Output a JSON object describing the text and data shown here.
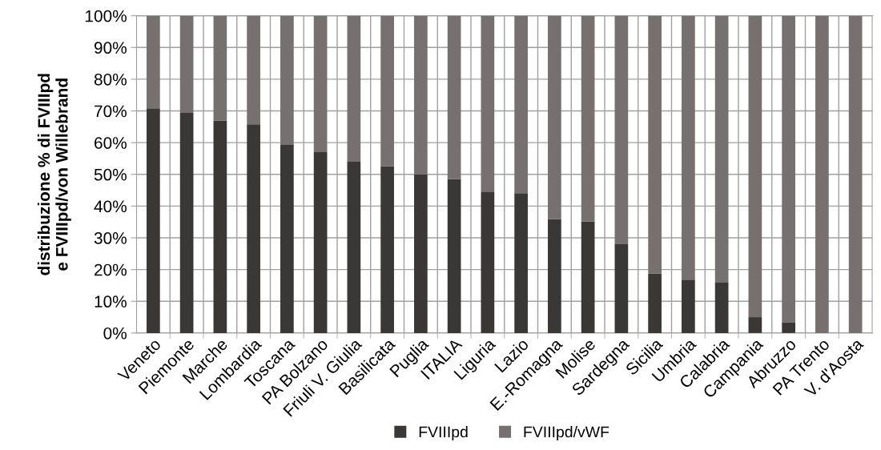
{
  "chart_data": {
    "type": "bar",
    "stacked": true,
    "ylabel": "distribuzione % di FVIIIpd\ne FVIIIpd/von Willebrand",
    "categories": [
      "Veneto",
      "Piemonte",
      "Marche",
      "Lombardia",
      "Toscana",
      "PA Bolzano",
      "Friuli V. Giulia",
      "Basilicata",
      "Puglia",
      "ITALIA",
      "Liguria",
      "Lazio",
      "E.-Romagna",
      "Molise",
      "Sardegna",
      "Sicilia",
      "Umbria",
      "Calabria",
      "Campania",
      "Abruzzo",
      "PA Trento",
      "V. d'Aosta"
    ],
    "series": [
      {
        "name": "FVIIIpd",
        "color": "#3a3836",
        "values": [
          70.8,
          69.4,
          67.0,
          65.8,
          59.3,
          57.0,
          54.0,
          52.6,
          50.0,
          48.5,
          44.6,
          44.1,
          35.9,
          35.1,
          28.0,
          18.8,
          16.8,
          15.9,
          5.0,
          3.4,
          0,
          0
        ]
      },
      {
        "name": "FVIIIpd/vWF",
        "color": "#767170",
        "values": [
          29.2,
          30.6,
          33.0,
          34.2,
          40.7,
          43.0,
          46.0,
          47.4,
          50.0,
          51.5,
          55.4,
          55.9,
          64.1,
          64.9,
          72.0,
          81.2,
          83.2,
          84.1,
          95.0,
          96.6,
          100,
          100
        ]
      }
    ],
    "ylim": [
      0,
      100
    ],
    "yticks": [
      {
        "value": 0,
        "label": "0%"
      },
      {
        "value": 10,
        "label": "10%"
      },
      {
        "value": 20,
        "label": "20%"
      },
      {
        "value": 30,
        "label": "30%"
      },
      {
        "value": 40,
        "label": "40%"
      },
      {
        "value": 50,
        "label": "50%"
      },
      {
        "value": 60,
        "label": "60%"
      },
      {
        "value": 70,
        "label": "70%"
      },
      {
        "value": 80,
        "label": "80%"
      },
      {
        "value": 90,
        "label": "90%"
      },
      {
        "value": 100,
        "label": "100%"
      }
    ],
    "grid": true,
    "legend": "bottom"
  }
}
